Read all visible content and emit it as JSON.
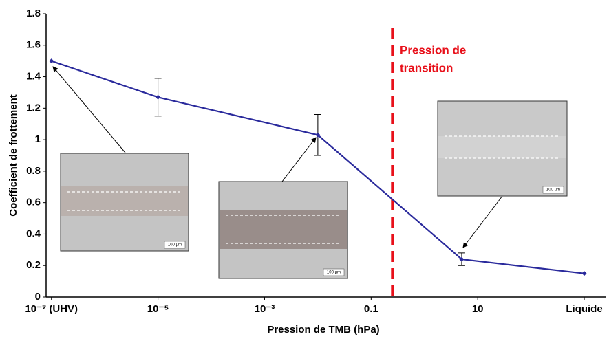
{
  "chart_data": {
    "type": "line",
    "x_label": "Pression de TMB (hPa)",
    "y_label": "Coefficient de frottement",
    "x": [
      -7,
      -5,
      -2,
      0.7,
      3
    ],
    "series": [
      {
        "color": "#2a2a9c",
        "values": [
          1.5,
          1.27,
          1.03,
          0.24,
          0.15
        ],
        "errors": [
          null,
          0.12,
          0.13,
          0.04,
          null
        ]
      }
    ],
    "xlim": [
      -7.1,
      3.4
    ],
    "xticks": [
      {
        "value": -7,
        "label": "10⁻⁷ (UHV)"
      },
      {
        "value": -5,
        "label": "10⁻⁵"
      },
      {
        "value": -3,
        "label": "10⁻³"
      },
      {
        "value": -1,
        "label": "0.1"
      },
      {
        "value": 1,
        "label": "10"
      },
      {
        "value": 3,
        "label": "Liquide"
      }
    ],
    "ylim": [
      0,
      1.8
    ],
    "yticks": [
      0,
      0.2,
      0.4,
      0.6,
      0.8,
      1,
      1.2,
      1.4,
      1.6,
      1.8
    ],
    "transition": {
      "x": -0.6,
      "label_lines": [
        "Pression de",
        "transition"
      ],
      "color": "#e8101a"
    },
    "insets": [
      {
        "scale_label": "100 µm"
      },
      {
        "scale_label": "100 µm"
      },
      {
        "scale_label": "100 µm"
      }
    ]
  }
}
